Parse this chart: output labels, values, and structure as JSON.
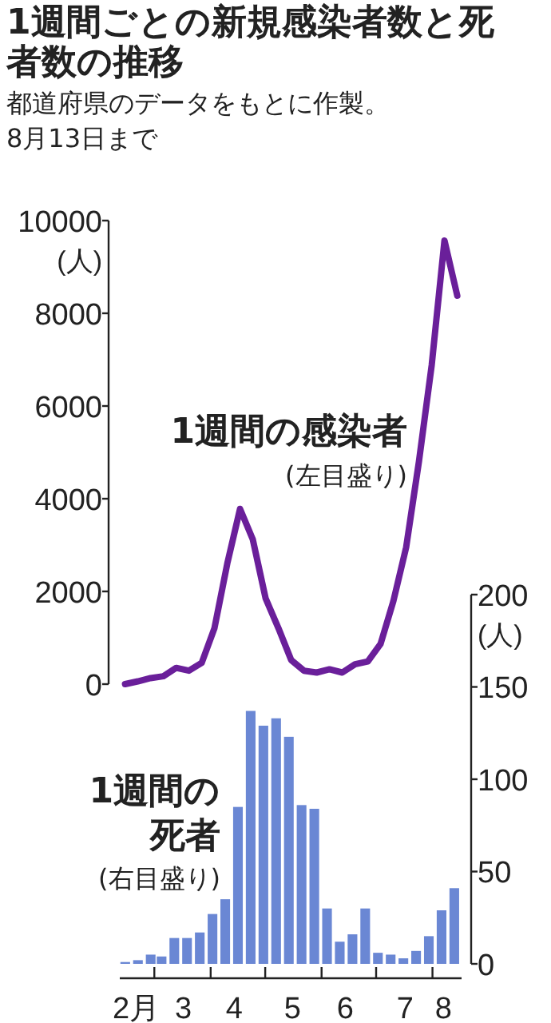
{
  "chart_data": [
    {
      "type": "line",
      "title": "1週間ごとの新規感染者数と死者数の推移",
      "subtitle": "都道府県のデータをもとに作製。",
      "annotations": [
        "8月13日まで",
        "(左目盛り)"
      ],
      "ylabel": "(人)",
      "categories": [
        null,
        null,
        null,
        null,
        null,
        null,
        null,
        null,
        null,
        null,
        null,
        null,
        null,
        null,
        null,
        null,
        null,
        null,
        null,
        null,
        null,
        null,
        null,
        null,
        null,
        null,
        null
      ],
      "tick_labels": "y",
      "ylim": [
        0,
        10000
      ],
      "yticks": [
        0,
        2000,
        4000,
        6000,
        8000,
        10000
      ],
      "legend": false,
      "grid": false,
      "marker": "none",
      "line_style": "solid",
      "series": [
        {
          "name": "1週間の感染者",
          "color": "#6a1f9a",
          "values": [
            0,
            60,
            130,
            170,
            350,
            290,
            460,
            1210,
            2600,
            3780,
            3120,
            1850,
            1210,
            520,
            290,
            250,
            320,
            250,
            430,
            490,
            870,
            1790,
            2950,
            4800,
            6880,
            9570,
            8380
          ]
        }
      ]
    },
    {
      "type": "bar",
      "annotations": [
        "(右目盛り)"
      ],
      "y2label": "(人)",
      "x": [
        "--02-13",
        "--02-20",
        "--02-27",
        "--03-05",
        "--03-12",
        "--03-19",
        "--03-26",
        "--04-02",
        "--04-09",
        "--04-16",
        "--04-23",
        "--04-30",
        "--05-07",
        "--05-14",
        "--05-21",
        "--05-28",
        "--06-04",
        "--06-11",
        "--06-18",
        "--06-25",
        "--07-02",
        "--07-09",
        "--07-16",
        "--07-23",
        "--07-30",
        "--08-06",
        "--08-13"
      ],
      "xlim": [
        "--02-10",
        "--08-17"
      ],
      "xticks": [
        {
          "value": "--02-19",
          "label": "2月"
        },
        {
          "value": "--03-01",
          "label": null
        },
        {
          "value": "--03-17",
          "label": "3"
        },
        {
          "value": "--04-01",
          "label": null
        },
        {
          "value": "--04-14",
          "label": "4"
        },
        {
          "value": "--05-01",
          "label": null
        },
        {
          "value": "--05-16",
          "label": "5"
        },
        {
          "value": "--06-01",
          "label": null
        },
        {
          "value": "--06-14",
          "label": "6"
        },
        {
          "value": "--07-01",
          "label": null
        },
        {
          "value": "--07-17",
          "label": "7"
        },
        {
          "value": "--08-01",
          "label": null
        },
        {
          "value": "--08-07",
          "label": "8"
        }
      ],
      "y2lim": [
        0,
        200
      ],
      "y2ticks": [
        0,
        50,
        100,
        150,
        200
      ],
      "legend": false,
      "grid": false,
      "series": [
        {
          "name": "1週間の死者",
          "axis": "y2",
          "color": "#6a87d4",
          "values": [
            1,
            2,
            5,
            4,
            14,
            14,
            17,
            27,
            35,
            85,
            137,
            129,
            133,
            123,
            86,
            84,
            30,
            12,
            16,
            30,
            6,
            5,
            3,
            7,
            15,
            29,
            41
          ]
        }
      ]
    }
  ]
}
